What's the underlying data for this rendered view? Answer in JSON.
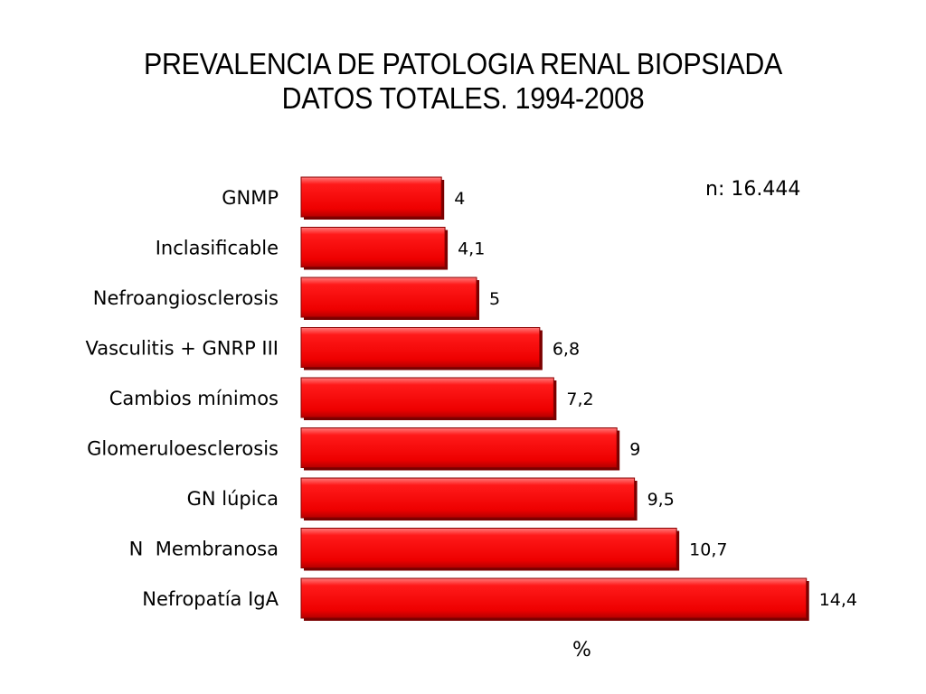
{
  "title_lines": [
    "PREVALENCIA DE PATOLOGIA RENAL BIOPSIADA",
    "DATOS TOTALES. 1994-2008"
  ],
  "annotation": "n: 16.444",
  "colors": {
    "bar": "#ff0000",
    "bar_shadow": "#7a0000",
    "bar_highlight": "#ff6b6b",
    "text": "#000000"
  },
  "chart_data": {
    "type": "bar",
    "orientation": "horizontal",
    "title": "PREVALENCIA DE PATOLOGIA RENAL BIOPSIADA DATOS TOTALES. 1994-2008",
    "xlabel": "%",
    "ylabel": "",
    "xlim": [
      0,
      14.4
    ],
    "grid": false,
    "categories": [
      "GNMP",
      "Inclasificable",
      "Nefroangiosclerosis",
      "Vasculitis + GNRP III",
      "Cambios mínimos",
      "Glomeruloesclerosis",
      "GN lúpica",
      "N  Membranosa",
      "Nefropatía IgA"
    ],
    "value_labels": [
      "4",
      "4,1",
      "5",
      "6,8",
      "7,2",
      "9",
      "9,5",
      "10,7",
      "14,4"
    ],
    "values": [
      4,
      4.1,
      5,
      6.8,
      7.2,
      9,
      9.5,
      10.7,
      14.4
    ]
  }
}
